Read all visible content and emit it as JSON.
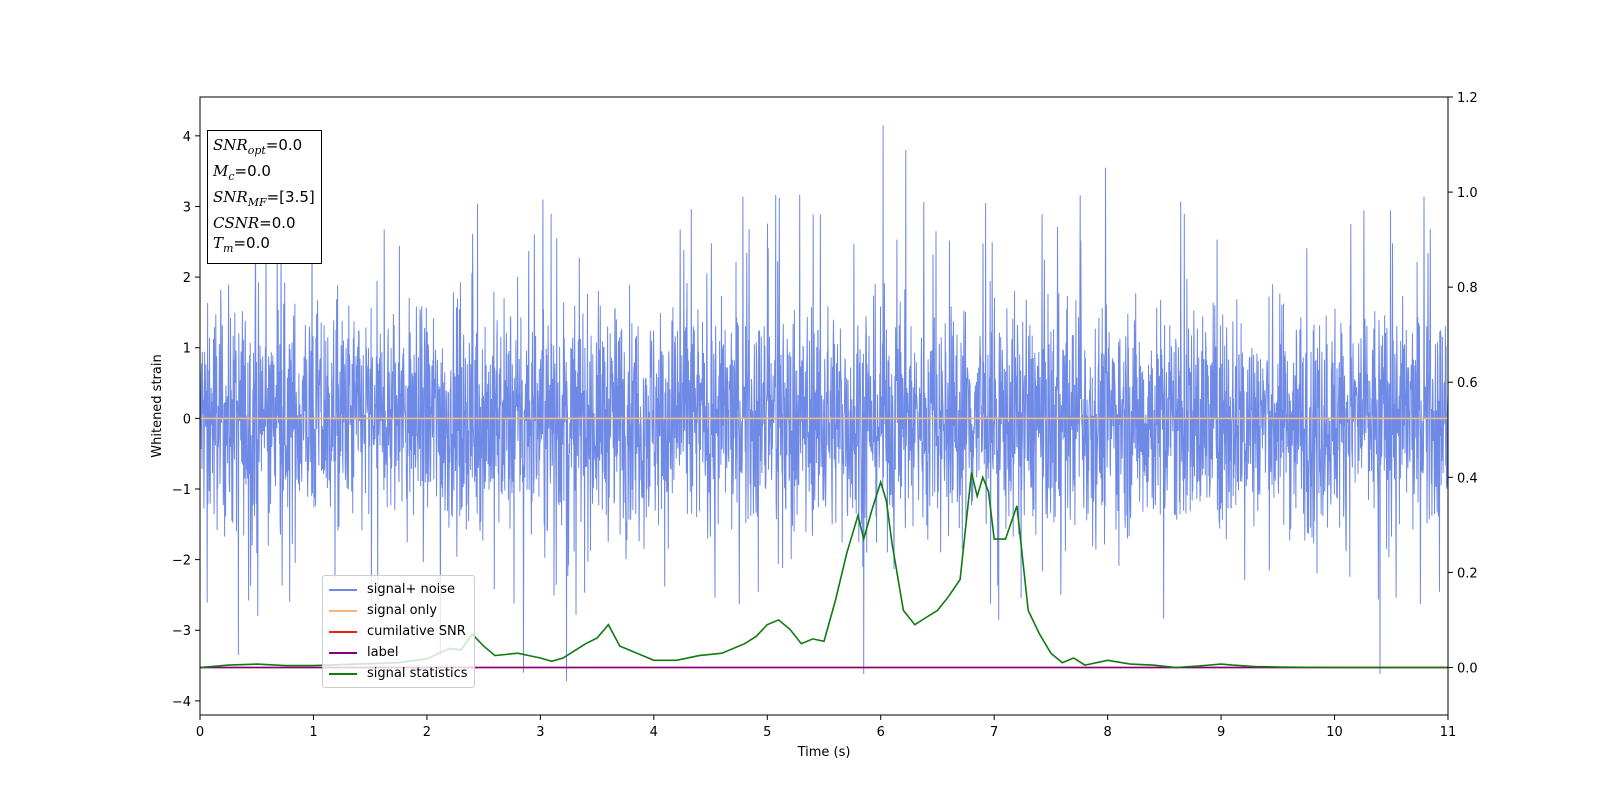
{
  "chart_data": {
    "type": "line",
    "title": "",
    "xlabel": "Time (s)",
    "ylabel": "Whitened strain",
    "xlim": [
      0,
      11
    ],
    "ylim": [
      -4.2,
      4.55
    ],
    "y2lim": [
      -0.1,
      1.2
    ],
    "x_ticks": [
      "0",
      "1",
      "2",
      "3",
      "4",
      "5",
      "6",
      "7",
      "8",
      "9",
      "10",
      "11"
    ],
    "y_ticks": [
      {
        "value": 4,
        "label": "4"
      },
      {
        "value": 3,
        "label": "3"
      },
      {
        "value": 2,
        "label": "2"
      },
      {
        "value": 1,
        "label": "1"
      },
      {
        "value": 0,
        "label": "0"
      },
      {
        "value": -1,
        "label": "−1"
      },
      {
        "value": -2,
        "label": "−2"
      },
      {
        "value": -3,
        "label": "−3"
      },
      {
        "value": -4,
        "label": "−4"
      }
    ],
    "y2_ticks": [
      {
        "value": 1.2,
        "label": "1.2"
      },
      {
        "value": 1.0,
        "label": "1.0"
      },
      {
        "value": 0.8,
        "label": "0.8"
      },
      {
        "value": 0.6,
        "label": "0.6"
      },
      {
        "value": 0.4,
        "label": "0.4"
      },
      {
        "value": 0.2,
        "label": "0.2"
      },
      {
        "value": 0.0,
        "label": "0.0"
      }
    ],
    "grid": false,
    "legend_position": "lower-left",
    "series": [
      {
        "name": "signal+ noise",
        "color": "#6f8ae6",
        "axis": "left",
        "kind": "noise",
        "amplitude_typical": [
          -1.9,
          2.3
        ],
        "peak_points": [
          [
            6.02,
            4.15
          ],
          [
            6.22,
            3.8
          ],
          [
            7.98,
            3.55
          ],
          [
            3.23,
            -3.72
          ],
          [
            0.34,
            -3.35
          ],
          [
            2.12,
            -3.35
          ],
          [
            5.85,
            -3.62
          ],
          [
            10.4,
            -3.62
          ],
          [
            2.85,
            -3.6
          ]
        ]
      },
      {
        "name": "signal only",
        "color": "#f5b87a",
        "axis": "left",
        "values_x": [
          0,
          11
        ],
        "values_y": [
          0,
          0
        ]
      },
      {
        "name": "cumilative SNR",
        "color": "#e8201a",
        "axis": "right",
        "values_x": [
          0,
          11
        ],
        "values_y": [
          0,
          0
        ]
      },
      {
        "name": "label",
        "color": "#800080",
        "axis": "right",
        "values_x": [
          0,
          11
        ],
        "values_y": [
          0,
          0
        ]
      },
      {
        "name": "signal statistics",
        "color": "#107a10",
        "axis": "right",
        "x": [
          0,
          0.25,
          0.5,
          0.75,
          1.0,
          1.25,
          1.5,
          1.75,
          2.0,
          2.2,
          2.3,
          2.4,
          2.5,
          2.6,
          2.8,
          2.9,
          3.0,
          3.1,
          3.2,
          3.3,
          3.4,
          3.5,
          3.6,
          3.7,
          3.8,
          4.0,
          4.2,
          4.4,
          4.6,
          4.8,
          4.9,
          5.0,
          5.1,
          5.2,
          5.3,
          5.4,
          5.5,
          5.6,
          5.7,
          5.8,
          5.85,
          5.92,
          6.0,
          6.05,
          6.1,
          6.2,
          6.3,
          6.4,
          6.5,
          6.6,
          6.7,
          6.8,
          6.85,
          6.9,
          6.95,
          7.0,
          7.1,
          7.2,
          7.3,
          7.4,
          7.5,
          7.6,
          7.7,
          7.8,
          8.0,
          8.2,
          8.4,
          8.6,
          8.8,
          9.0,
          9.1,
          9.3,
          9.5,
          10,
          10.5,
          11
        ],
        "y": [
          0.0,
          0.005,
          0.007,
          0.004,
          0.004,
          0.006,
          0.008,
          0.01,
          0.018,
          0.04,
          0.037,
          0.07,
          0.045,
          0.025,
          0.03,
          0.025,
          0.02,
          0.013,
          0.02,
          0.035,
          0.05,
          0.062,
          0.09,
          0.045,
          0.035,
          0.015,
          0.015,
          0.025,
          0.03,
          0.05,
          0.065,
          0.09,
          0.1,
          0.08,
          0.05,
          0.06,
          0.055,
          0.14,
          0.24,
          0.32,
          0.27,
          0.33,
          0.39,
          0.35,
          0.26,
          0.12,
          0.09,
          0.105,
          0.12,
          0.15,
          0.185,
          0.41,
          0.36,
          0.4,
          0.37,
          0.27,
          0.27,
          0.34,
          0.12,
          0.07,
          0.03,
          0.01,
          0.02,
          0.005,
          0.015,
          0.007,
          0.005,
          0.0,
          0.003,
          0.007,
          0.005,
          0.002,
          0.001,
          0.0,
          0.0,
          0.0
        ]
      }
    ]
  },
  "infobox": {
    "snr_opt": {
      "base": "SNR",
      "sub": "opt",
      "value": "=0.0"
    },
    "mc": {
      "base": "M",
      "sub": "c",
      "value": "=0.0"
    },
    "snr_mf": {
      "base": "SNR",
      "sub": "MF",
      "value": "=[3.5]"
    },
    "csnr": {
      "base": "CSNR",
      "value": "=0.0"
    },
    "tm": {
      "base": "T",
      "sub": "m",
      "value": "=0.0"
    }
  }
}
